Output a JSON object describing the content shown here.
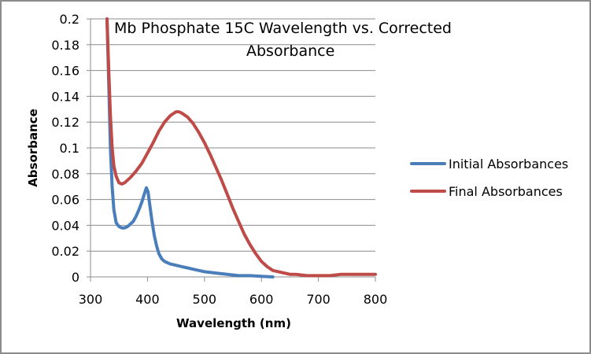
{
  "chart_data": {
    "type": "line",
    "title": "Mb Phosphate 15C Wavelength vs. Corrected Absorbance",
    "title_lines": [
      "Mb Phosphate  15C Wavelength vs. Corrected",
      "Absorbance"
    ],
    "xlabel": "Wavelength (nm)",
    "ylabel": "Absorbance",
    "xlim": [
      300,
      800
    ],
    "ylim": [
      0,
      0.2
    ],
    "xticks": [
      300,
      400,
      500,
      600,
      700,
      800
    ],
    "xtick_labels": [
      "300",
      "400",
      "500",
      "600",
      "700",
      "800"
    ],
    "yticks": [
      0,
      0.02,
      0.04,
      0.06,
      0.08,
      0.1,
      0.12,
      0.14,
      0.16,
      0.18,
      0.2
    ],
    "ytick_labels": [
      "0",
      "0.02",
      "0.04",
      "0.06",
      "0.08",
      "0.1",
      "0.12",
      "0.14",
      "0.16",
      "0.18",
      "0.2"
    ],
    "grid": "horizontal",
    "legend_position": "right",
    "series": [
      {
        "name": "Initial Absorbances",
        "color": "#4a7ebb",
        "x": [
          329,
          332,
          335,
          338,
          341,
          345,
          350,
          355,
          360,
          365,
          370,
          375,
          380,
          385,
          390,
          395,
          398,
          401,
          404,
          408,
          412,
          416,
          420,
          425,
          430,
          440,
          450,
          460,
          470,
          480,
          490,
          500,
          520,
          540,
          560,
          580,
          600,
          620
        ],
        "y": [
          0.2,
          0.15,
          0.1,
          0.07,
          0.052,
          0.042,
          0.039,
          0.038,
          0.038,
          0.039,
          0.041,
          0.043,
          0.047,
          0.052,
          0.058,
          0.065,
          0.069,
          0.066,
          0.056,
          0.043,
          0.032,
          0.024,
          0.018,
          0.014,
          0.012,
          0.01,
          0.009,
          0.008,
          0.007,
          0.006,
          0.005,
          0.004,
          0.003,
          0.002,
          0.001,
          0.001,
          0.0005,
          0
        ]
      },
      {
        "name": "Final Absorbances",
        "color": "#be4b48",
        "x": [
          329,
          332,
          335,
          338,
          341,
          345,
          350,
          355,
          360,
          370,
          380,
          390,
          400,
          410,
          420,
          430,
          440,
          450,
          455,
          460,
          470,
          480,
          490,
          500,
          510,
          520,
          530,
          540,
          550,
          560,
          570,
          580,
          590,
          600,
          610,
          620,
          630,
          640,
          650,
          660,
          680,
          700,
          720,
          740,
          760,
          780,
          800
        ],
        "y": [
          0.2,
          0.16,
          0.125,
          0.1,
          0.086,
          0.078,
          0.073,
          0.072,
          0.073,
          0.077,
          0.082,
          0.088,
          0.096,
          0.104,
          0.113,
          0.12,
          0.125,
          0.128,
          0.128,
          0.127,
          0.124,
          0.119,
          0.112,
          0.104,
          0.095,
          0.085,
          0.075,
          0.064,
          0.053,
          0.043,
          0.033,
          0.025,
          0.018,
          0.012,
          0.008,
          0.005,
          0.004,
          0.003,
          0.002,
          0.002,
          0.001,
          0.001,
          0.001,
          0.002,
          0.002,
          0.002,
          0.002
        ]
      }
    ]
  }
}
